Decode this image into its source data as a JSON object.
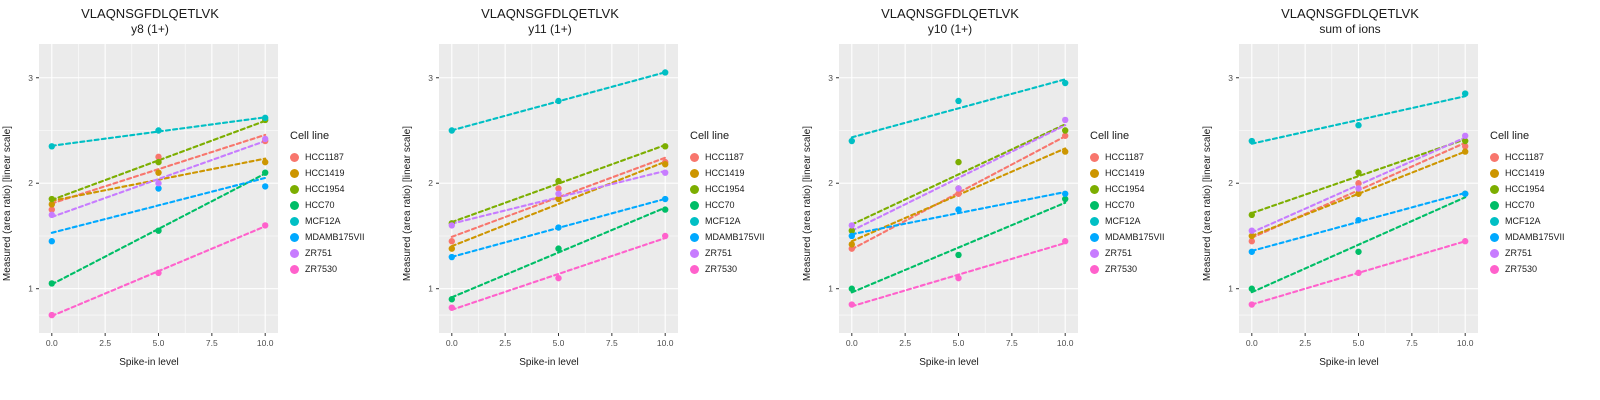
{
  "legend_title": "Cell line",
  "cell_lines": [
    "HCC1187",
    "HCC1419",
    "HCC1954",
    "HCC70",
    "MCF12A",
    "MDAMB175VII",
    "ZR751",
    "ZR7530"
  ],
  "series_colors": [
    "#F8766D",
    "#CD9600",
    "#7CAE00",
    "#00BE67",
    "#00BFC4",
    "#00A9FF",
    "#C77CFF",
    "#FF61CC"
  ],
  "axis": {
    "xlabel": "Spike-in level",
    "ylabel": "Measured (area ratio) [linear scale]",
    "x_ticks": [
      0.0,
      2.5,
      5.0,
      7.5,
      10.0
    ],
    "x_tick_labels": [
      "0.0",
      "2.5",
      "5.0",
      "7.5",
      "10.0"
    ],
    "y_ticks": [
      1,
      2,
      3
    ],
    "y_tick_labels": [
      "1",
      "2",
      "3"
    ],
    "x_minor_ticks": [
      1.25,
      3.75,
      6.25,
      8.75
    ],
    "y_minor_ticks": [
      0.75,
      1.5,
      2.5
    ],
    "xlim": [
      -0.6,
      10.6
    ],
    "ylim": [
      0.58,
      3.32
    ],
    "grid": true,
    "panel_background": "#EBEBEB",
    "grid_major_color": "#FFFFFF",
    "grid_minor_color": "#F5F5F5",
    "tick_label_color": "#4D4D4D"
  },
  "chart_data": [
    {
      "type": "scatter",
      "title": "VLAQNSGFDLQETLVK",
      "subtitle": "y8 (1+)",
      "x": [
        0,
        5,
        10
      ],
      "trend": "linear-dashed",
      "legend_position": "right",
      "series": [
        {
          "name": "HCC1187",
          "color": "#F8766D",
          "values": [
            1.75,
            2.25,
            2.4
          ]
        },
        {
          "name": "HCC1419",
          "color": "#CD9600",
          "values": [
            1.8,
            2.1,
            2.2
          ]
        },
        {
          "name": "HCC1954",
          "color": "#7CAE00",
          "values": [
            1.85,
            2.2,
            2.6
          ]
        },
        {
          "name": "HCC70",
          "color": "#00BE67",
          "values": [
            1.05,
            1.55,
            2.1
          ]
        },
        {
          "name": "MCF12A",
          "color": "#00BFC4",
          "values": [
            2.35,
            2.5,
            2.62
          ]
        },
        {
          "name": "MDAMB175VII",
          "color": "#00A9FF",
          "values": [
            1.45,
            1.95,
            1.97
          ]
        },
        {
          "name": "ZR751",
          "color": "#C77CFF",
          "values": [
            1.7,
            2.0,
            2.42
          ]
        },
        {
          "name": "ZR7530",
          "color": "#FF61CC",
          "values": [
            0.75,
            1.15,
            1.6
          ]
        }
      ]
    },
    {
      "type": "scatter",
      "title": "VLAQNSGFDLQETLVK",
      "subtitle": "y11 (1+)",
      "x": [
        0,
        5,
        10
      ],
      "trend": "linear-dashed",
      "legend_position": "right",
      "series": [
        {
          "name": "HCC1187",
          "color": "#F8766D",
          "values": [
            1.45,
            1.95,
            2.2
          ]
        },
        {
          "name": "HCC1419",
          "color": "#CD9600",
          "values": [
            1.38,
            1.85,
            2.18
          ]
        },
        {
          "name": "HCC1954",
          "color": "#7CAE00",
          "values": [
            1.62,
            2.02,
            2.35
          ]
        },
        {
          "name": "HCC70",
          "color": "#00BE67",
          "values": [
            0.9,
            1.38,
            1.75
          ]
        },
        {
          "name": "MCF12A",
          "color": "#00BFC4",
          "values": [
            2.5,
            2.78,
            3.05
          ]
        },
        {
          "name": "MDAMB175VII",
          "color": "#00A9FF",
          "values": [
            1.3,
            1.58,
            1.85
          ]
        },
        {
          "name": "ZR751",
          "color": "#C77CFF",
          "values": [
            1.6,
            1.9,
            2.1
          ]
        },
        {
          "name": "ZR7530",
          "color": "#FF61CC",
          "values": [
            0.82,
            1.1,
            1.5
          ]
        }
      ]
    },
    {
      "type": "scatter",
      "title": "VLAQNSGFDLQETLVK",
      "subtitle": "y10 (1+)",
      "x": [
        0,
        5,
        10
      ],
      "trend": "linear-dashed",
      "legend_position": "right",
      "series": [
        {
          "name": "HCC1187",
          "color": "#F8766D",
          "values": [
            1.38,
            1.9,
            2.45
          ]
        },
        {
          "name": "HCC1419",
          "color": "#CD9600",
          "values": [
            1.42,
            1.95,
            2.3
          ]
        },
        {
          "name": "HCC1954",
          "color": "#7CAE00",
          "values": [
            1.55,
            2.2,
            2.5
          ]
        },
        {
          "name": "HCC70",
          "color": "#00BE67",
          "values": [
            1.0,
            1.32,
            1.85
          ]
        },
        {
          "name": "MCF12A",
          "color": "#00BFC4",
          "values": [
            2.4,
            2.78,
            2.95
          ]
        },
        {
          "name": "MDAMB175VII",
          "color": "#00A9FF",
          "values": [
            1.5,
            1.75,
            1.9
          ]
        },
        {
          "name": "ZR751",
          "color": "#C77CFF",
          "values": [
            1.6,
            1.95,
            2.6
          ]
        },
        {
          "name": "ZR7530",
          "color": "#FF61CC",
          "values": [
            0.85,
            1.1,
            1.45
          ]
        }
      ]
    },
    {
      "type": "scatter",
      "title": "VLAQNSGFDLQETLVK",
      "subtitle": "sum of ions",
      "x": [
        0,
        5,
        10
      ],
      "trend": "linear-dashed",
      "legend_position": "right",
      "series": [
        {
          "name": "HCC1187",
          "color": "#F8766D",
          "values": [
            1.45,
            2.0,
            2.35
          ]
        },
        {
          "name": "HCC1419",
          "color": "#CD9600",
          "values": [
            1.5,
            1.9,
            2.3
          ]
        },
        {
          "name": "HCC1954",
          "color": "#7CAE00",
          "values": [
            1.7,
            2.1,
            2.4
          ]
        },
        {
          "name": "HCC70",
          "color": "#00BE67",
          "values": [
            1.0,
            1.35,
            1.9
          ]
        },
        {
          "name": "MCF12A",
          "color": "#00BFC4",
          "values": [
            2.4,
            2.55,
            2.85
          ]
        },
        {
          "name": "MDAMB175VII",
          "color": "#00A9FF",
          "values": [
            1.35,
            1.65,
            1.9
          ]
        },
        {
          "name": "ZR751",
          "color": "#C77CFF",
          "values": [
            1.55,
            1.95,
            2.45
          ]
        },
        {
          "name": "ZR7530",
          "color": "#FF61CC",
          "values": [
            0.85,
            1.15,
            1.45
          ]
        }
      ]
    }
  ]
}
